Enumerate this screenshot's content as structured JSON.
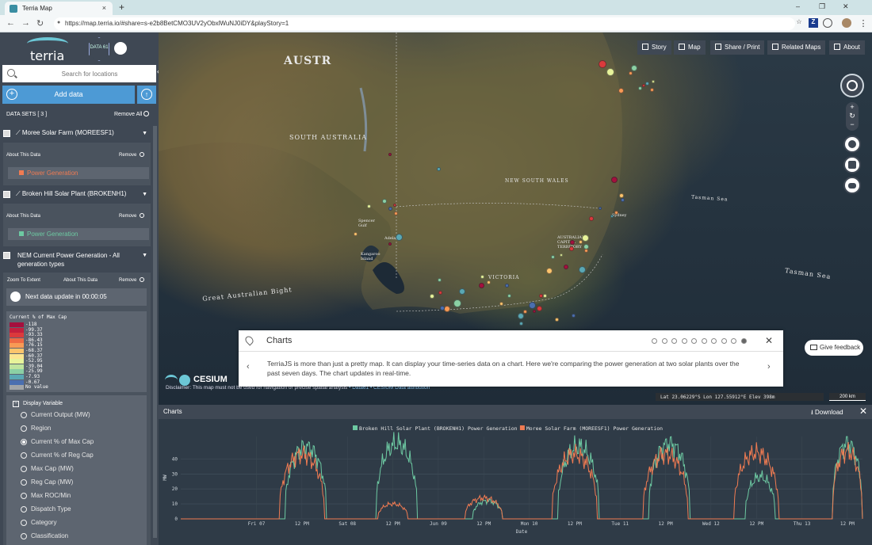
{
  "browser": {
    "tab_title": "Terria Map",
    "tab_close": "×",
    "new_tab": "+",
    "win_min": "–",
    "win_max": "❐",
    "win_close": "✕",
    "url": "https://map.terria.io/#share=s-e2b8BetCMO3UV2yObxlWuNJ0iDY&playStory=1",
    "ext_z": "Z",
    "ext_menu": "⋮"
  },
  "sidebar": {
    "logo_text": "terria",
    "data61_text": "DATA 61",
    "search_placeholder": "Search for locations",
    "add_data_label": "Add data",
    "datasets_label": "DATA SETS  [ 3 ]",
    "remove_all_label": "Remove All",
    "datasets": [
      {
        "title": "Moree Solar Farm (MOREESF1)",
        "about": "About This Data",
        "remove": "Remove",
        "legend": "Power Generation",
        "legend_color": "#f07b52"
      },
      {
        "title": "Broken Hill Solar Plant (BROKENH1)",
        "about": "About This Data",
        "remove": "Remove",
        "legend": "Power Generation",
        "legend_color": "#6dc9a2"
      },
      {
        "title_line1": "NEM Current Power Generation - All",
        "title_line2": "generation types",
        "zoom": "Zoom To Extent",
        "about": "About This Data",
        "remove": "Remove"
      }
    ],
    "next_update": "Next data update in 00:00:05",
    "legend": {
      "title": "Current % of Max Cap",
      "entries": [
        {
          "label": "-118",
          "color": "#a50f3d"
        },
        {
          "label": "-99.37",
          "color": "#c41f3d"
        },
        {
          "label": "-93.33",
          "color": "#db3a3c"
        },
        {
          "label": "-86.43",
          "color": "#ee6a44"
        },
        {
          "label": "-76.15",
          "color": "#f89a55"
        },
        {
          "label": "-68.37",
          "color": "#fcc46c"
        },
        {
          "label": "-60.37",
          "color": "#fde590"
        },
        {
          "label": "-52.95",
          "color": "#e7f39a"
        },
        {
          "label": "-39.04",
          "color": "#bfe49e"
        },
        {
          "label": "-25.99",
          "color": "#8bd0a4"
        },
        {
          "label": "-7.93",
          "color": "#5aa8b4"
        },
        {
          "label": "-0.67",
          "color": "#4a6fb0"
        },
        {
          "label": "No value",
          "color": "#a0a4a8"
        }
      ]
    },
    "display_variable": {
      "title": "Display Variable",
      "options": [
        "Current Output (MW)",
        "Region",
        "Current % of Max Cap",
        "Current % of Reg Cap",
        "Max Cap (MW)",
        "Reg Cap (MW)",
        "Max ROC/Min",
        "Dispatch Type",
        "Category",
        "Classification"
      ],
      "selected": "Current % of Max Cap"
    }
  },
  "map": {
    "buttons": [
      "Story",
      "Map",
      "Share / Print",
      "Related Maps",
      "About"
    ],
    "labels": {
      "austr": "AUSTR",
      "south_australia": "SOUTH AUSTRALIA",
      "new_south_wales": "NEW SOUTH WALES",
      "victoria": "VICTORIA",
      "great_australian_bight": "Great Australian Bight",
      "tasman_sea_1": "Tasman Sea",
      "tasman_sea_2": "Tasman Sea",
      "spencer_gulf": "Spencer Gulf",
      "adelaide": "Adelaide",
      "sydney": "Sydney",
      "act": "AUSTRALIAN CAPITAL TERRITORY",
      "kangaroo_island": "Kangaroo Island"
    },
    "zoom_plus": "+",
    "zoom_refresh": "↻",
    "zoom_minus": "−",
    "cesium": "CESIUM",
    "disclaimer": "Disclaimer: This map must not be used for navigation or precise spatial analysis",
    "disclaimer_links": "• Data61 • CESIUM  Data attribution",
    "coords": "Lat  23.06229°S    Lon  127.55912°E    Elev  398m",
    "scale": "200 km",
    "feedback": "Give feedback"
  },
  "story": {
    "title": "Charts",
    "total": 10,
    "current_index": 9,
    "text": "TerriaJS is more than just a pretty map. It can display your time-series data on a chart. Here we're comparing the power generation at two solar plants over the past seven days. The chart updates in real-time.",
    "close": "✕",
    "prev": "‹",
    "next": "›"
  },
  "chart_panel": {
    "title": "Charts",
    "download": "Download",
    "close": "✕"
  },
  "chart_data": {
    "type": "line",
    "title": "",
    "xlabel": "Date",
    "ylabel": "MW",
    "ylim": [
      0,
      55
    ],
    "yticks": [
      0,
      10,
      20,
      30,
      40
    ],
    "xticks": [
      "Fri 07",
      "12 PM",
      "Sat 08",
      "12 PM",
      "Jun 09",
      "12 PM",
      "Mon 10",
      "12 PM",
      "Tue 11",
      "12 PM",
      "Wed 12",
      "12 PM",
      "Thu 13",
      "12 PM"
    ],
    "x_hours_range": [
      -20,
      160
    ],
    "series": [
      {
        "name": "Broken Hill Solar Plant (BROKENH1) Power Generation",
        "color": "#6dc9a2",
        "peaks": [
          {
            "center_hour": 13,
            "half_width": 5.5,
            "max": 48
          },
          {
            "center_hour": 37,
            "half_width": 5.5,
            "max": 50
          },
          {
            "center_hour": 61,
            "half_width": 4,
            "max": 12
          },
          {
            "center_hour": 85,
            "half_width": 5.5,
            "max": 48
          },
          {
            "center_hour": 109,
            "half_width": 5.5,
            "max": 50
          },
          {
            "center_hour": 133,
            "half_width": 4,
            "max": 28
          },
          {
            "center_hour": 156,
            "half_width": 4,
            "max": 50
          }
        ]
      },
      {
        "name": "Moree Solar Farm (MOREESF1) Power Generation",
        "color": "#f07b52",
        "peaks": [
          {
            "center_hour": 12,
            "half_width": 6,
            "max": 43
          },
          {
            "center_hour": 36,
            "half_width": 4,
            "max": 10
          },
          {
            "center_hour": 60,
            "half_width": 5,
            "max": 14
          },
          {
            "center_hour": 84,
            "half_width": 6,
            "max": 43
          },
          {
            "center_hour": 108,
            "half_width": 6,
            "max": 43
          },
          {
            "center_hour": 132,
            "half_width": 6,
            "max": 44
          },
          {
            "center_hour": 156,
            "half_width": 4,
            "max": 45
          }
        ]
      }
    ]
  }
}
